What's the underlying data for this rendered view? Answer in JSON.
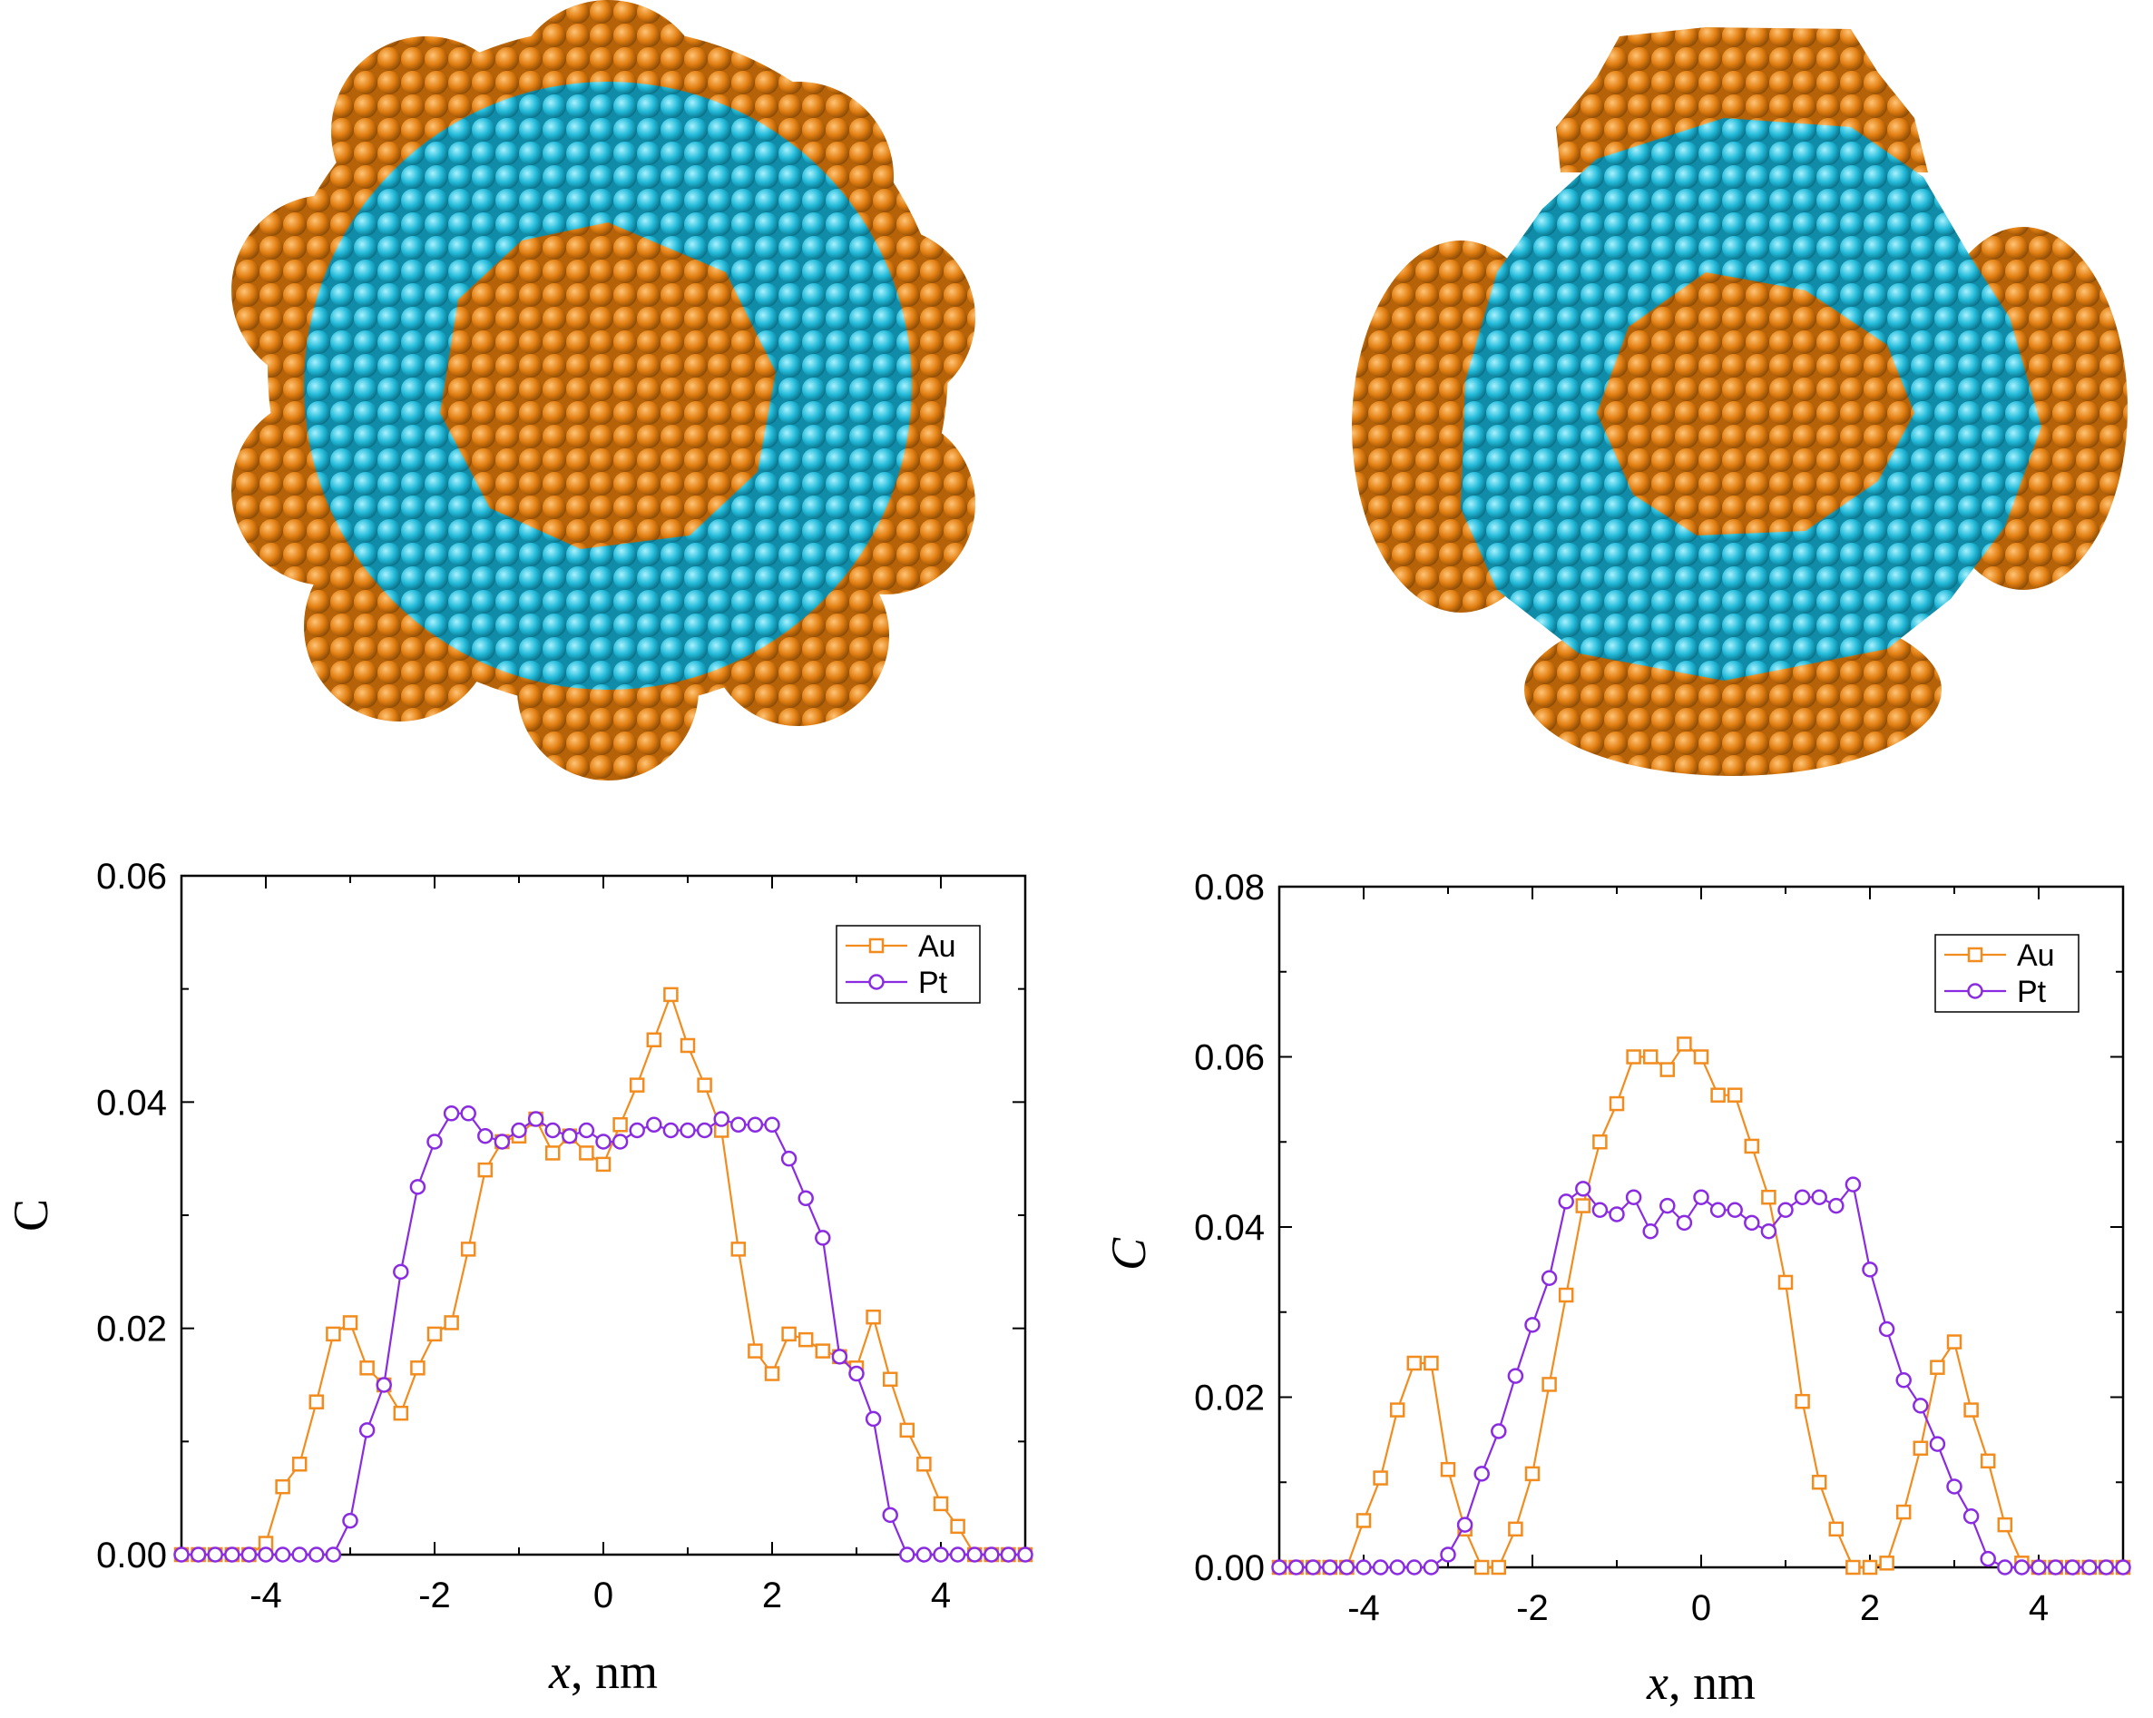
{
  "colors": {
    "au": "#F28C1E",
    "pt": "#8A2BE2",
    "cyan": "#20B8D8",
    "orange_atom": "#D97A10"
  },
  "illustrations": [
    {
      "name": "nanoparticle-eight-lobes",
      "lobes": 8
    },
    {
      "name": "nanoparticle-four-lobes",
      "lobes": 4
    }
  ],
  "chart_data": [
    {
      "type": "line",
      "title": "",
      "xlabel_italic": "x",
      "xlabel_rest": ", nm",
      "ylabel": "C",
      "xlim": [
        -5,
        5
      ],
      "ylim": [
        0,
        0.06
      ],
      "xticks": [
        -4,
        -2,
        0,
        2,
        4
      ],
      "xtick_labels": [
        "-4",
        "-2",
        "0",
        "2",
        "4"
      ],
      "yticks": [
        0,
        0.02,
        0.04,
        0.06
      ],
      "ytick_labels": [
        "0.00",
        "0.02",
        "0.04",
        "0.06"
      ],
      "grid": false,
      "legend": "top-right",
      "x": [
        -5.0,
        -4.8,
        -4.6,
        -4.4,
        -4.2,
        -4.0,
        -3.8,
        -3.6,
        -3.4,
        -3.2,
        -3.0,
        -2.8,
        -2.6,
        -2.4,
        -2.2,
        -2.0,
        -1.8,
        -1.6,
        -1.4,
        -1.2,
        -1.0,
        -0.8,
        -0.6,
        -0.4,
        -0.2,
        0.0,
        0.2,
        0.4,
        0.6,
        0.8,
        1.0,
        1.2,
        1.4,
        1.6,
        1.8,
        2.0,
        2.2,
        2.4,
        2.6,
        2.8,
        3.0,
        3.2,
        3.4,
        3.6,
        3.8,
        4.0,
        4.2,
        4.4,
        4.6,
        4.8,
        5.0
      ],
      "series": [
        {
          "name": "Au",
          "marker": "square",
          "values": [
            0.0,
            0.0,
            0.0,
            0.0,
            0.0,
            0.001,
            0.006,
            0.008,
            0.0135,
            0.0195,
            0.0205,
            0.0165,
            0.015,
            0.0125,
            0.0165,
            0.0195,
            0.0205,
            0.027,
            0.034,
            0.0365,
            0.037,
            0.0385,
            0.0355,
            0.037,
            0.0355,
            0.0345,
            0.038,
            0.0415,
            0.0455,
            0.0495,
            0.045,
            0.0415,
            0.0375,
            0.027,
            0.018,
            0.016,
            0.0195,
            0.019,
            0.018,
            0.0175,
            0.0165,
            0.021,
            0.0155,
            0.011,
            0.008,
            0.0045,
            0.0025,
            0.0,
            0.0,
            0.0,
            0.0
          ]
        },
        {
          "name": "Pt",
          "marker": "circle",
          "values": [
            0.0,
            0.0,
            0.0,
            0.0,
            0.0,
            0.0,
            0.0,
            0.0,
            0.0,
            0.0,
            0.003,
            0.011,
            0.015,
            0.025,
            0.0325,
            0.0365,
            0.039,
            0.039,
            0.037,
            0.0365,
            0.0375,
            0.0385,
            0.0375,
            0.037,
            0.0375,
            0.0365,
            0.0365,
            0.0375,
            0.038,
            0.0375,
            0.0375,
            0.0375,
            0.0385,
            0.038,
            0.038,
            0.038,
            0.035,
            0.0315,
            0.028,
            0.0175,
            0.016,
            0.012,
            0.0035,
            0.0,
            0.0,
            0.0,
            0.0,
            0.0,
            0.0,
            0.0,
            0.0
          ]
        }
      ]
    },
    {
      "type": "line",
      "title": "",
      "xlabel_italic": "x",
      "xlabel_rest": ", nm",
      "ylabel": "C",
      "xlim": [
        -5,
        5
      ],
      "ylim": [
        0,
        0.08
      ],
      "xticks": [
        -4,
        -2,
        0,
        2,
        4
      ],
      "xtick_labels": [
        "-4",
        "-2",
        "0",
        "2",
        "4"
      ],
      "yticks": [
        0,
        0.02,
        0.04,
        0.06,
        0.08
      ],
      "ytick_labels": [
        "0.00",
        "0.02",
        "0.04",
        "0.06",
        "0.08"
      ],
      "grid": false,
      "legend": "top-right",
      "x": [
        -5.0,
        -4.8,
        -4.6,
        -4.4,
        -4.2,
        -4.0,
        -3.8,
        -3.6,
        -3.4,
        -3.2,
        -3.0,
        -2.8,
        -2.6,
        -2.4,
        -2.2,
        -2.0,
        -1.8,
        -1.6,
        -1.4,
        -1.2,
        -1.0,
        -0.8,
        -0.6,
        -0.4,
        -0.2,
        0.0,
        0.2,
        0.4,
        0.6,
        0.8,
        1.0,
        1.2,
        1.4,
        1.6,
        1.8,
        2.0,
        2.2,
        2.4,
        2.6,
        2.8,
        3.0,
        3.2,
        3.4,
        3.6,
        3.8,
        4.0,
        4.2,
        4.4,
        4.6,
        4.8,
        5.0
      ],
      "series": [
        {
          "name": "Au",
          "marker": "square",
          "values": [
            0.0,
            0.0,
            0.0,
            0.0,
            0.0,
            0.0055,
            0.0105,
            0.0185,
            0.024,
            0.024,
            0.0115,
            0.0045,
            0.0,
            0.0,
            0.0045,
            0.011,
            0.0215,
            0.032,
            0.0425,
            0.05,
            0.0545,
            0.06,
            0.06,
            0.0585,
            0.0615,
            0.06,
            0.0555,
            0.0555,
            0.0495,
            0.0435,
            0.0335,
            0.0195,
            0.01,
            0.0045,
            0.0,
            0.0,
            0.0005,
            0.0065,
            0.014,
            0.0235,
            0.0265,
            0.0185,
            0.0125,
            0.005,
            0.0005,
            0.0,
            0.0,
            0.0,
            0.0,
            0.0,
            0.0
          ]
        },
        {
          "name": "Pt",
          "marker": "circle",
          "values": [
            0.0,
            0.0,
            0.0,
            0.0,
            0.0,
            0.0,
            0.0,
            0.0,
            0.0,
            0.0,
            0.0015,
            0.005,
            0.011,
            0.016,
            0.0225,
            0.0285,
            0.034,
            0.043,
            0.0445,
            0.042,
            0.0415,
            0.0435,
            0.0395,
            0.0425,
            0.0405,
            0.0435,
            0.042,
            0.042,
            0.0405,
            0.0395,
            0.042,
            0.0435,
            0.0435,
            0.0425,
            0.045,
            0.035,
            0.028,
            0.022,
            0.019,
            0.0145,
            0.0095,
            0.006,
            0.001,
            0.0,
            0.0,
            0.0,
            0.0,
            0.0,
            0.0,
            0.0,
            0.0
          ]
        }
      ]
    }
  ]
}
